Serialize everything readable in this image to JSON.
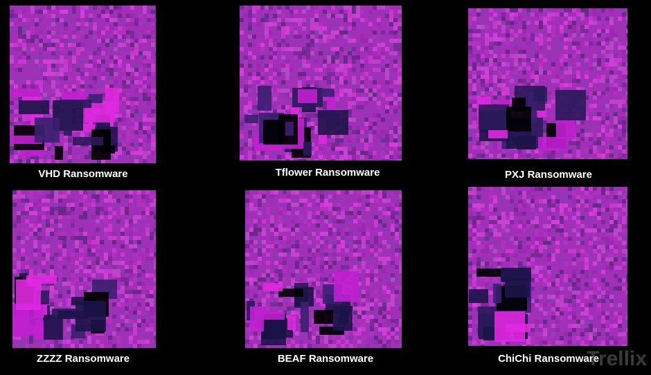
{
  "panels": [
    {
      "label": "VHD Ransomware"
    },
    {
      "label": "Tflower Ransomware"
    },
    {
      "label": "PXJ Ransomware"
    },
    {
      "label": "ZZZZ Ransomware"
    },
    {
      "label": "BEAF Ransomware"
    },
    {
      "label": "ChiChi Ransomware"
    }
  ],
  "watermark": "Trellix"
}
